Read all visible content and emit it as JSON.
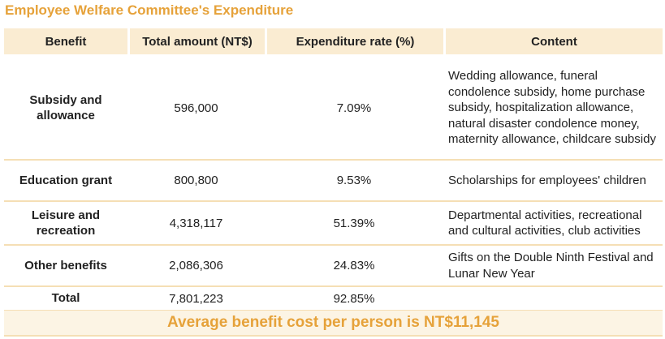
{
  "title": "Employee Welfare Committee's Expenditure",
  "colors": {
    "accent": "#e6a23a",
    "header_bg": "#faecd2",
    "row_border": "#f5dfb5",
    "footer_bg": "#fcf4e4"
  },
  "table": {
    "columns": [
      "Benefit",
      "Total amount (NT$)",
      "Expenditure rate (%)",
      "Content"
    ],
    "rows": [
      {
        "benefit": "Subsidy and allowance",
        "amount": "596,000",
        "rate": "7.09%",
        "content": "Wedding allowance, funeral condolence subsidy, home purchase subsidy, hospitalization allowance, natural disaster condolence money, maternity allowance, childcare subsidy"
      },
      {
        "benefit": "Education grant",
        "amount": "800,800",
        "rate": "9.53%",
        "content": "Scholarships for employees' children"
      },
      {
        "benefit": "Leisure and recreation",
        "amount": "4,318,117",
        "rate": "51.39%",
        "content": "Departmental activities, recreational and cultural activities, club activities"
      },
      {
        "benefit": "Other benefits",
        "amount": "2,086,306",
        "rate": "24.83%",
        "content": "Gifts on the Double Ninth Festival and Lunar New Year"
      },
      {
        "benefit": "Total",
        "amount": "7,801,223",
        "rate": "92.85%",
        "content": ""
      }
    ]
  },
  "footer": {
    "average_text": "Average benefit cost per person is NT$11,145"
  }
}
